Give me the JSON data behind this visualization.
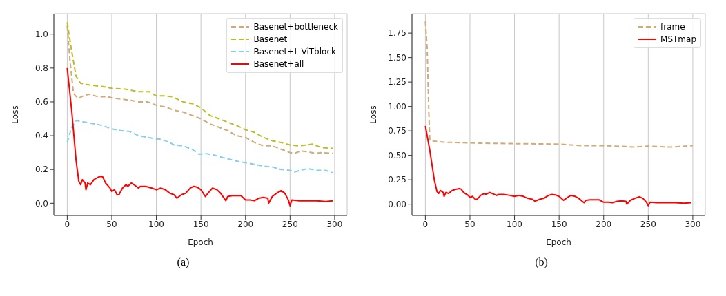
{
  "chart_data": [
    {
      "type": "line",
      "xlabel": "Epoch",
      "ylabel": "Loss",
      "annotations": [
        "(a)"
      ],
      "xlim": [
        -15,
        314
      ],
      "ylim": [
        -0.072,
        1.121
      ],
      "xticks": [
        0,
        50,
        100,
        150,
        200,
        250,
        300
      ],
      "yticks": [
        {
          "value": 0,
          "label": "0.0"
        },
        {
          "value": 0.2,
          "label": "0.2"
        },
        {
          "value": 0.4,
          "label": "0.4"
        },
        {
          "value": 0.6,
          "label": "0.6"
        },
        {
          "value": 0.8,
          "label": "0.8"
        },
        {
          "value": 1,
          "label": "1.0"
        }
      ],
      "grid": true,
      "legend": "top right",
      "series": [
        {
          "name": "Basenet+bottleneck",
          "color": "#d2aa78",
          "line_style": "dashed",
          "x": [
            0,
            3,
            7,
            12,
            20,
            25,
            35,
            45,
            55,
            70,
            80,
            90,
            100,
            110,
            120,
            130,
            140,
            150,
            160,
            170,
            180,
            190,
            200,
            210,
            220,
            230,
            240,
            250,
            255,
            262,
            270,
            278,
            285,
            298
          ],
          "values": [
            1.05,
            0.85,
            0.65,
            0.62,
            0.64,
            0.645,
            0.63,
            0.63,
            0.62,
            0.61,
            0.6,
            0.6,
            0.58,
            0.57,
            0.55,
            0.54,
            0.52,
            0.5,
            0.47,
            0.45,
            0.43,
            0.4,
            0.39,
            0.36,
            0.34,
            0.34,
            0.32,
            0.3,
            0.295,
            0.31,
            0.305,
            0.295,
            0.3,
            0.295
          ]
        },
        {
          "name": "Basenet",
          "color": "#bcbd22",
          "line_style": "dashed",
          "x": [
            0,
            5,
            10,
            15,
            25,
            40,
            50,
            65,
            80,
            92,
            100,
            110,
            118,
            130,
            140,
            150,
            160,
            170,
            180,
            190,
            200,
            210,
            220,
            230,
            240,
            250,
            260,
            268,
            275,
            285,
            298
          ],
          "values": [
            1.07,
            0.9,
            0.75,
            0.71,
            0.7,
            0.69,
            0.68,
            0.675,
            0.66,
            0.66,
            0.635,
            0.635,
            0.63,
            0.6,
            0.59,
            0.565,
            0.52,
            0.5,
            0.48,
            0.46,
            0.435,
            0.42,
            0.39,
            0.37,
            0.36,
            0.345,
            0.34,
            0.345,
            0.35,
            0.33,
            0.325
          ]
        },
        {
          "name": "Basenet+L-ViTblock",
          "color": "#87ceeb",
          "line_style": "dashed",
          "x": [
            0,
            5,
            10,
            20,
            30,
            40,
            50,
            60,
            70,
            80,
            90,
            100,
            105,
            115,
            120,
            130,
            140,
            148,
            155,
            165,
            175,
            190,
            200,
            210,
            220,
            230,
            240,
            250,
            255,
            265,
            270,
            280,
            290,
            298
          ],
          "values": [
            0.36,
            0.45,
            0.49,
            0.48,
            0.47,
            0.46,
            0.44,
            0.43,
            0.425,
            0.4,
            0.39,
            0.38,
            0.38,
            0.36,
            0.345,
            0.34,
            0.32,
            0.29,
            0.295,
            0.285,
            0.27,
            0.25,
            0.24,
            0.23,
            0.22,
            0.215,
            0.2,
            0.195,
            0.185,
            0.2,
            0.205,
            0.195,
            0.195,
            0.18
          ]
        },
        {
          "name": "Basenet+all",
          "color": "#ff0000",
          "line_style": "solid",
          "x": [
            0,
            5,
            10,
            13,
            15,
            17,
            20,
            21,
            23,
            26,
            30,
            35,
            38,
            40,
            43,
            48,
            50,
            53,
            56,
            58,
            62,
            66,
            68,
            72,
            75,
            80,
            82,
            88,
            95,
            100,
            105,
            110,
            115,
            120,
            123,
            128,
            133,
            138,
            142,
            146,
            150,
            155,
            158,
            163,
            168,
            172,
            176,
            178,
            180,
            185,
            190,
            195,
            200,
            205,
            210,
            215,
            220,
            225,
            226,
            230,
            235,
            240,
            244,
            248,
            250,
            252,
            260,
            280,
            290,
            298
          ],
          "values": [
            0.8,
            0.55,
            0.25,
            0.13,
            0.11,
            0.14,
            0.12,
            0.08,
            0.12,
            0.11,
            0.14,
            0.155,
            0.16,
            0.155,
            0.12,
            0.09,
            0.07,
            0.08,
            0.05,
            0.05,
            0.09,
            0.11,
            0.1,
            0.12,
            0.11,
            0.09,
            0.1,
            0.1,
            0.09,
            0.08,
            0.09,
            0.08,
            0.06,
            0.05,
            0.03,
            0.05,
            0.06,
            0.09,
            0.1,
            0.095,
            0.08,
            0.04,
            0.06,
            0.09,
            0.08,
            0.06,
            0.03,
            0.015,
            0.04,
            0.045,
            0.045,
            0.045,
            0.02,
            0.02,
            0.015,
            0.03,
            0.035,
            0.03,
            0,
            0.04,
            0.06,
            0.075,
            0.06,
            0.02,
            -0.015,
            0.02,
            0.015,
            0.015,
            0.01,
            0.015
          ]
        }
      ]
    },
    {
      "type": "line",
      "xlabel": "Epoch",
      "ylabel": "Loss",
      "annotations": [
        "(b)"
      ],
      "xlim": [
        -15,
        314
      ],
      "ylim": [
        -0.115,
        1.948
      ],
      "xticks": [
        0,
        50,
        100,
        150,
        200,
        250,
        300
      ],
      "yticks": [
        {
          "value": 0,
          "label": "0.00"
        },
        {
          "value": 0.25,
          "label": "0.25"
        },
        {
          "value": 0.5,
          "label": "0.50"
        },
        {
          "value": 0.75,
          "label": "0.75"
        },
        {
          "value": 1,
          "label": "1.00"
        },
        {
          "value": 1.25,
          "label": "1.25"
        },
        {
          "value": 1.5,
          "label": "1.50"
        },
        {
          "value": 1.75,
          "label": "1.75"
        }
      ],
      "grid": true,
      "legend": "top right",
      "series": [
        {
          "name": "frame",
          "color": "#d2aa78",
          "line_style": "dashed",
          "x": [
            0,
            2,
            4,
            5,
            10,
            20,
            40,
            60,
            100,
            150,
            175,
            200,
            225,
            235,
            250,
            275,
            300
          ],
          "values": [
            1.87,
            1.6,
            0.9,
            0.66,
            0.645,
            0.635,
            0.63,
            0.625,
            0.62,
            0.615,
            0.6,
            0.6,
            0.59,
            0.585,
            0.595,
            0.585,
            0.6
          ]
        },
        {
          "name": "MSTmap",
          "color": "#ff0000",
          "line_style": "solid",
          "x": [
            0,
            5,
            10,
            13,
            15,
            17,
            20,
            21,
            23,
            26,
            30,
            35,
            38,
            40,
            43,
            48,
            50,
            53,
            56,
            58,
            62,
            66,
            68,
            72,
            75,
            80,
            82,
            88,
            95,
            100,
            105,
            110,
            115,
            120,
            123,
            128,
            133,
            138,
            142,
            146,
            150,
            155,
            158,
            163,
            168,
            172,
            176,
            178,
            180,
            185,
            190,
            195,
            200,
            205,
            210,
            215,
            220,
            225,
            226,
            230,
            235,
            240,
            244,
            248,
            250,
            252,
            260,
            280,
            290,
            298
          ],
          "values": [
            0.8,
            0.55,
            0.25,
            0.13,
            0.11,
            0.14,
            0.12,
            0.08,
            0.12,
            0.11,
            0.14,
            0.155,
            0.16,
            0.155,
            0.12,
            0.09,
            0.07,
            0.08,
            0.05,
            0.05,
            0.09,
            0.11,
            0.1,
            0.12,
            0.11,
            0.09,
            0.1,
            0.1,
            0.09,
            0.08,
            0.09,
            0.08,
            0.06,
            0.05,
            0.03,
            0.05,
            0.06,
            0.09,
            0.1,
            0.095,
            0.08,
            0.04,
            0.06,
            0.09,
            0.08,
            0.06,
            0.03,
            0.015,
            0.04,
            0.045,
            0.045,
            0.045,
            0.02,
            0.02,
            0.015,
            0.03,
            0.035,
            0.03,
            0,
            0.04,
            0.06,
            0.075,
            0.06,
            0.02,
            -0.015,
            0.02,
            0.015,
            0.015,
            0.01,
            0.015
          ]
        }
      ]
    }
  ]
}
